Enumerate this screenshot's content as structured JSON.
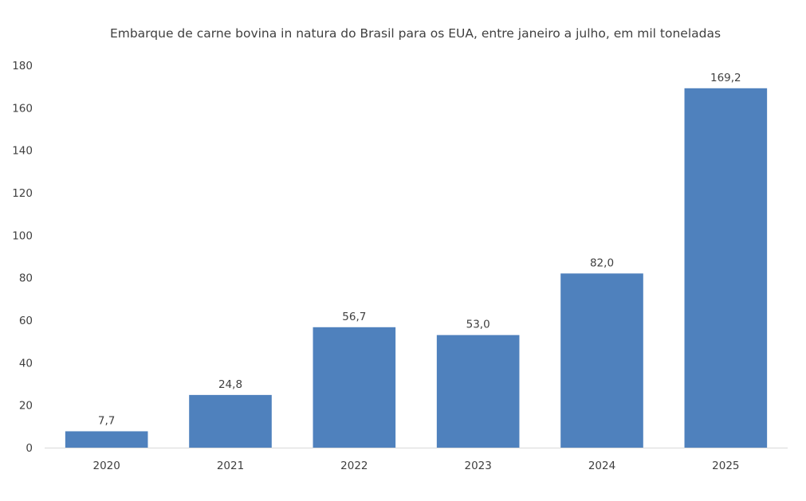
{
  "chart_data": {
    "type": "bar",
    "title": "Embarque de carne bovina in natura do Brasil para os EUA, entre janeiro a julho,  em mil toneladas",
    "categories": [
      "2020",
      "2021",
      "2022",
      "2023",
      "2024",
      "2025"
    ],
    "values": [
      7.7,
      24.8,
      56.7,
      53.0,
      82.0,
      169.2
    ],
    "data_labels": [
      "7,7",
      "24,8",
      "56,7",
      "53,0",
      "82,0",
      "169,2"
    ],
    "xlabel": "",
    "ylabel": "",
    "ylim": [
      0,
      180
    ],
    "yticks": [
      0,
      20,
      40,
      60,
      80,
      100,
      120,
      140,
      160,
      180
    ],
    "grid": false,
    "legend": "none",
    "bar_color": "#4F81BD"
  }
}
